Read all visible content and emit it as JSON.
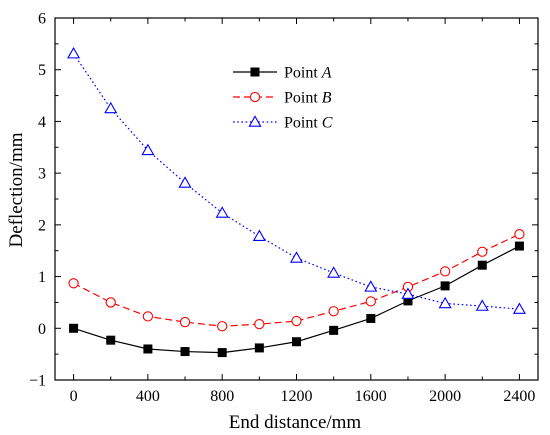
{
  "chart_data": {
    "type": "line",
    "title": "",
    "xlabel": "End distance/mm",
    "ylabel": "Deflection/mm",
    "xlim": [
      -100,
      2500
    ],
    "ylim": [
      -1,
      6
    ],
    "xticks": [
      0,
      400,
      800,
      1200,
      1600,
      2000,
      2400
    ],
    "xtick_labels": [
      "0",
      "400",
      "800",
      "1200",
      "1600",
      "2000",
      "2400"
    ],
    "yticks": [
      -1,
      0,
      1,
      2,
      3,
      4,
      5,
      6
    ],
    "ytick_labels": [
      "−1",
      "0",
      "1",
      "2",
      "3",
      "4",
      "5",
      "6"
    ],
    "grid": false,
    "legend_position": "top-center",
    "x": [
      0,
      200,
      400,
      600,
      800,
      1000,
      1200,
      1400,
      1600,
      1800,
      2000,
      2200,
      2400
    ],
    "series": [
      {
        "name": "Point A",
        "name_prefix": "Point ",
        "name_var": "A",
        "color": "#000000",
        "line_style": "solid",
        "marker": "filled-square",
        "values": [
          0.0,
          -0.23,
          -0.4,
          -0.45,
          -0.47,
          -0.38,
          -0.26,
          -0.04,
          0.19,
          0.53,
          0.82,
          1.22,
          1.59
        ]
      },
      {
        "name": "Point B",
        "name_prefix": "Point ",
        "name_var": "B",
        "color": "#ff0000",
        "line_style": "dashed",
        "marker": "open-circle",
        "values": [
          0.87,
          0.5,
          0.23,
          0.12,
          0.04,
          0.08,
          0.14,
          0.33,
          0.52,
          0.8,
          1.1,
          1.48,
          1.82
        ]
      },
      {
        "name": "Point C",
        "name_prefix": "Point ",
        "name_var": "C",
        "color": "#0000ff",
        "line_style": "dotted",
        "marker": "open-triangle",
        "values": [
          5.31,
          4.25,
          3.44,
          2.81,
          2.23,
          1.78,
          1.36,
          1.07,
          0.8,
          0.66,
          0.48,
          0.43,
          0.37
        ]
      }
    ]
  }
}
